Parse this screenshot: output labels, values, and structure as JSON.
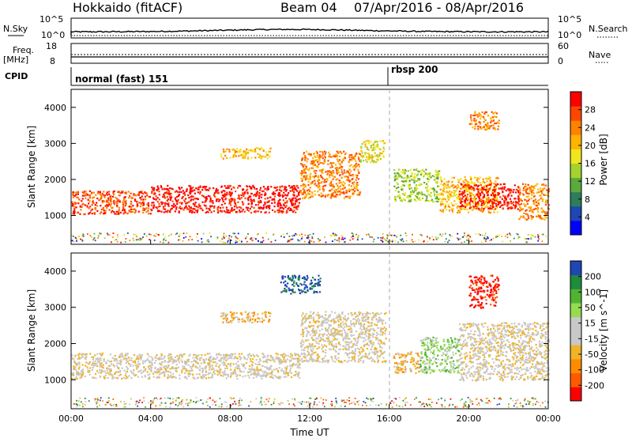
{
  "header": {
    "station": "Hokkaido (fitACF)",
    "beam": "Beam 04",
    "date_range": "07/Apr/2016 - 08/Apr/2016"
  },
  "strips": {
    "nsky_label": "N.Sky",
    "nsearch_label": "N.Search",
    "freq_label": "Freq.",
    "freq_unit": "[MHz]",
    "nave_label": "Nave",
    "cpid_label": "CPID",
    "left_ticks_top": [
      "10^5",
      "10^0"
    ],
    "right_ticks_top": [
      "10^5",
      "10^0"
    ],
    "freq_ticks": [
      "18",
      "8"
    ],
    "nave_ticks": [
      "60",
      "0"
    ],
    "modes": [
      {
        "name": "normal (fast) 151",
        "start_hour": 0
      },
      {
        "name": "rbsp 200",
        "start_hour": 16
      }
    ]
  },
  "x_axis": {
    "label": "Time UT",
    "ticks": [
      "00:00",
      "04:00",
      "08:00",
      "12:00",
      "16:00",
      "20:00",
      "00:00"
    ]
  },
  "colors": {
    "power_scale": [
      "#0000ff",
      "#1e46b4",
      "#2d7d5a",
      "#5aaa3c",
      "#a5d22d",
      "#f0e61e",
      "#ffb400",
      "#ff8200",
      "#ff4600",
      "#ff0000"
    ],
    "velocity_scale": [
      "#ff0000",
      "#ff5a00",
      "#ff8c00",
      "#f0b428",
      "#c8c8c8",
      "#c8c8c8",
      "#96dc50",
      "#50b432",
      "#1e8c3c",
      "#1e46b4"
    ]
  },
  "chart_data": [
    {
      "type": "heatmap",
      "name": "power",
      "ylabel": "Slant Range [km]",
      "yticks": [
        1000,
        2000,
        3000,
        4000
      ],
      "ylim": [
        200,
        4500
      ],
      "xlim_hours": [
        0,
        24
      ],
      "colorbar_label": "Power [dB]",
      "colorbar_ticks": [
        "28",
        "24",
        "20",
        "16",
        "12",
        "8",
        "4"
      ],
      "regions": [
        {
          "t0": 0.0,
          "t1": 4.0,
          "r0": 1050,
          "r1": 1700,
          "level": 8
        },
        {
          "t0": 4.0,
          "t1": 11.5,
          "r0": 1100,
          "r1": 1850,
          "level": 9
        },
        {
          "t0": 11.5,
          "t1": 14.5,
          "r0": 1500,
          "r1": 2800,
          "level": 7
        },
        {
          "t0": 14.5,
          "t1": 15.8,
          "r0": 2500,
          "r1": 3100,
          "level": 5
        },
        {
          "t0": 7.5,
          "t1": 10.0,
          "r0": 2600,
          "r1": 2900,
          "level": 6
        },
        {
          "t0": 16.2,
          "t1": 18.5,
          "r0": 1400,
          "r1": 2300,
          "level": 4
        },
        {
          "t0": 18.5,
          "t1": 21.5,
          "r0": 1100,
          "r1": 2100,
          "level": 6
        },
        {
          "t0": 19.5,
          "t1": 22.5,
          "r0": 1200,
          "r1": 1900,
          "level": 9
        },
        {
          "t0": 22.5,
          "t1": 24.0,
          "r0": 900,
          "r1": 1900,
          "level": 7
        },
        {
          "t0": 20.0,
          "t1": 21.5,
          "r0": 3400,
          "r1": 3900,
          "level": 7
        }
      ]
    },
    {
      "type": "heatmap",
      "name": "velocity",
      "ylabel": "Slant Range [km]",
      "yticks": [
        1000,
        2000,
        3000,
        4000
      ],
      "ylim": [
        200,
        4500
      ],
      "xlim_hours": [
        0,
        24
      ],
      "colorbar_label": "Velocity [m s^-1]",
      "colorbar_ticks": [
        "200",
        "100",
        "50",
        "15",
        "-15",
        "-50",
        "-100",
        "-200"
      ],
      "regions": [
        {
          "t0": 0.0,
          "t1": 11.5,
          "r0": 1050,
          "r1": 1750,
          "level": 4
        },
        {
          "t0": 11.5,
          "t1": 15.8,
          "r0": 1500,
          "r1": 2900,
          "level": 4
        },
        {
          "t0": 7.5,
          "t1": 10.0,
          "r0": 2600,
          "r1": 2900,
          "level": 3
        },
        {
          "t0": 16.2,
          "t1": 17.5,
          "r0": 1200,
          "r1": 1800,
          "level": 3
        },
        {
          "t0": 17.5,
          "t1": 19.5,
          "r0": 1200,
          "r1": 2200,
          "level": 6
        },
        {
          "t0": 19.5,
          "t1": 24.0,
          "r0": 1000,
          "r1": 2600,
          "level": 4
        },
        {
          "t0": 10.5,
          "t1": 12.5,
          "r0": 3400,
          "r1": 3900,
          "level": 9
        },
        {
          "t0": 20.0,
          "t1": 21.5,
          "r0": 3000,
          "r1": 3900,
          "level": 0
        }
      ]
    }
  ]
}
